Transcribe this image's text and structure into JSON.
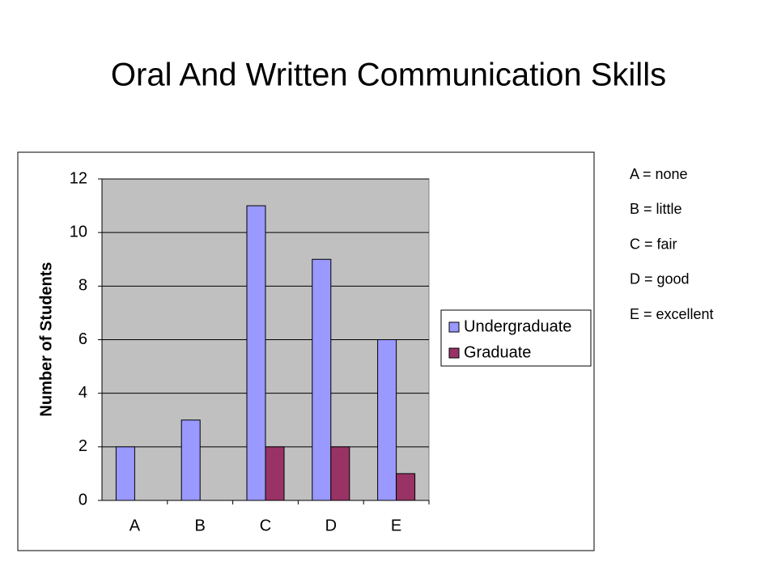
{
  "chart_data": {
    "type": "bar",
    "title": "Oral And Written Communication Skills",
    "y_label": "Number of Students",
    "categories": [
      "A",
      "B",
      "C",
      "D",
      "E"
    ],
    "series": [
      {
        "name": "Undergraduate",
        "color": "#9999ff",
        "values": [
          2,
          3,
          11,
          9,
          6
        ]
      },
      {
        "name": "Graduate",
        "color": "#993366",
        "values": [
          0,
          0,
          2,
          2,
          1
        ]
      }
    ],
    "ylim": [
      0,
      12
    ],
    "yticks": [
      0,
      2,
      4,
      6,
      8,
      10,
      12
    ],
    "grid": true,
    "legend": "right",
    "annotations": [
      "A = none",
      "B = little",
      "C = fair",
      "D = good",
      "E = excellent"
    ]
  }
}
